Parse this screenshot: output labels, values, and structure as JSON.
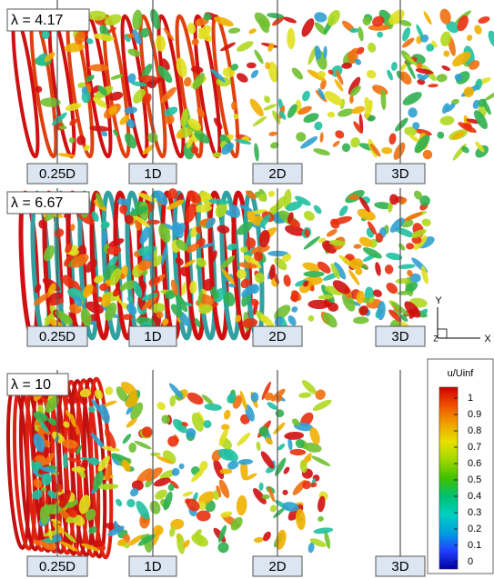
{
  "panels": [
    {
      "label": "λ = 4.17",
      "stations": [
        "0.25D",
        "1D",
        "2D",
        "3D"
      ]
    },
    {
      "label": "λ = 6.67",
      "stations": [
        "0.25D",
        "1D",
        "2D",
        "3D"
      ]
    },
    {
      "label": "λ = 10",
      "stations": [
        "0.25D",
        "1D",
        "2D",
        "3D"
      ]
    }
  ],
  "axes": {
    "y": "Y",
    "z": "Z",
    "x": "X"
  },
  "colorbar": {
    "title": "u/Uinf",
    "ticks": [
      "1",
      "0.9",
      "0.8",
      "0.7",
      "0.6",
      "0.5",
      "0.4",
      "0.3",
      "0.2",
      "0.1",
      "0"
    ]
  }
}
